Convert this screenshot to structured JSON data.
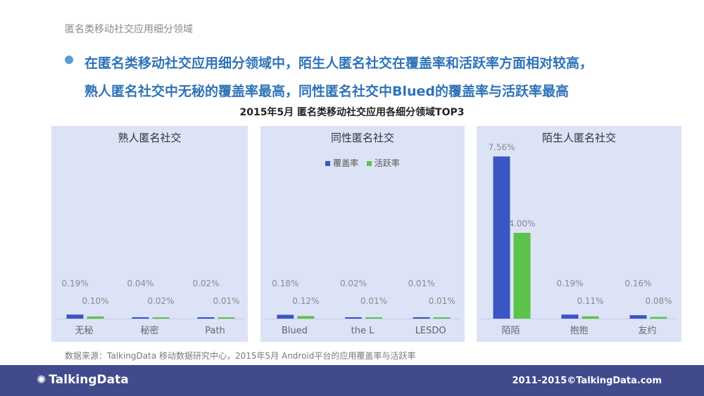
{
  "page": {
    "title": "匿名类移动社交应用细分领域",
    "headline_line1": "在匿名类移动社交应用细分领域中，陌生人匿名社交在覆盖率和活跃率方面相对较高，",
    "headline_line2": "熟人匿名社交中无秘的覆盖率最高，同性匿名社交中Blued的覆盖率与活跃率最高",
    "charts_title": "2015年5月 匿名类移动社交应用各细分领域TOP3",
    "source": "数据来源：TalkingData 移动数据研究中心，2015年5月 Android平台的应用覆盖率与活跃率"
  },
  "footer": {
    "logo_text": "TalkingData",
    "logo_icon": "talkingdata-gear-icon",
    "copyright": "2011-2015©TalkingData.com"
  },
  "colors": {
    "coverage": "#3a55c4",
    "active": "#5cc34a",
    "panel_bg": "#dde3f7",
    "headline": "#2f73b8",
    "footer_bg": "#414a8c"
  },
  "legend": {
    "coverage": "覆盖率",
    "active": "活跃率"
  },
  "chart_data": [
    {
      "type": "bar",
      "title": "熟人匿名社交",
      "categories": [
        "无秘",
        "秘密",
        "Path"
      ],
      "series": [
        {
          "name": "覆盖率",
          "values": [
            0.19,
            0.04,
            0.02
          ],
          "labels": [
            "0.19%",
            "0.04%",
            "0.02%"
          ]
        },
        {
          "name": "活跃率",
          "values": [
            0.1,
            0.02,
            0.01
          ],
          "labels": [
            "0.10%",
            "0.02%",
            "0.01%"
          ]
        }
      ],
      "ylim": [
        0,
        8
      ]
    },
    {
      "type": "bar",
      "title": "同性匿名社交",
      "categories": [
        "Blued",
        "the L",
        "LESDO"
      ],
      "series": [
        {
          "name": "覆盖率",
          "values": [
            0.18,
            0.02,
            0.01
          ],
          "labels": [
            "0.18%",
            "0.02%",
            "0.01%"
          ]
        },
        {
          "name": "活跃率",
          "values": [
            0.12,
            0.01,
            0.01
          ],
          "labels": [
            "0.12%",
            "0.01%",
            "0.01%"
          ]
        }
      ],
      "ylim": [
        0,
        8
      ]
    },
    {
      "type": "bar",
      "title": "陌生人匿名社交",
      "categories": [
        "陌陌",
        "抱抱",
        "友约"
      ],
      "series": [
        {
          "name": "覆盖率",
          "values": [
            7.56,
            0.19,
            0.16
          ],
          "labels": [
            "7.56%",
            "0.19%",
            "0.16%"
          ]
        },
        {
          "name": "活跃率",
          "values": [
            4.0,
            0.11,
            0.08
          ],
          "labels": [
            "4.00%",
            "0.11%",
            "0.08%"
          ]
        }
      ],
      "ylim": [
        0,
        8
      ]
    }
  ]
}
